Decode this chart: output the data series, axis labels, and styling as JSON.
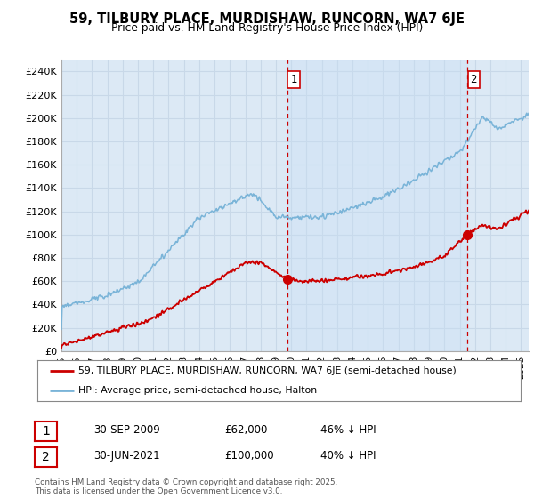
{
  "title": "59, TILBURY PLACE, MURDISHAW, RUNCORN, WA7 6JE",
  "subtitle": "Price paid vs. HM Land Registry's House Price Index (HPI)",
  "hpi_color": "#7ab4d8",
  "price_color": "#cc0000",
  "marker_color": "#cc0000",
  "dashed_color": "#cc0000",
  "bg_color": "#dce9f5",
  "shade_color": "#daeaf7",
  "grid_color": "#c8d8e8",
  "sale1_x": 2009.75,
  "sale1_y": 62000,
  "sale2_x": 2021.5,
  "sale2_y": 100000,
  "sale1_date": "30-SEP-2009",
  "sale1_price": "£62,000",
  "sale1_hpi": "46% ↓ HPI",
  "sale2_date": "30-JUN-2021",
  "sale2_price": "£100,000",
  "sale2_hpi": "40% ↓ HPI",
  "footnote": "Contains HM Land Registry data © Crown copyright and database right 2025.\nThis data is licensed under the Open Government Licence v3.0.",
  "legend_line1": "59, TILBURY PLACE, MURDISHAW, RUNCORN, WA7 6JE (semi-detached house)",
  "legend_line2": "HPI: Average price, semi-detached house, Halton",
  "xmin": 1995,
  "xmax": 2025.5,
  "ymin": 0,
  "ymax": 250000,
  "yticks": [
    0,
    20000,
    40000,
    60000,
    80000,
    100000,
    120000,
    140000,
    160000,
    180000,
    200000,
    220000,
    240000
  ],
  "ytick_labels": [
    "£0",
    "£20K",
    "£40K",
    "£60K",
    "£80K",
    "£100K",
    "£120K",
    "£140K",
    "£160K",
    "£180K",
    "£200K",
    "£220K",
    "£240K"
  ]
}
